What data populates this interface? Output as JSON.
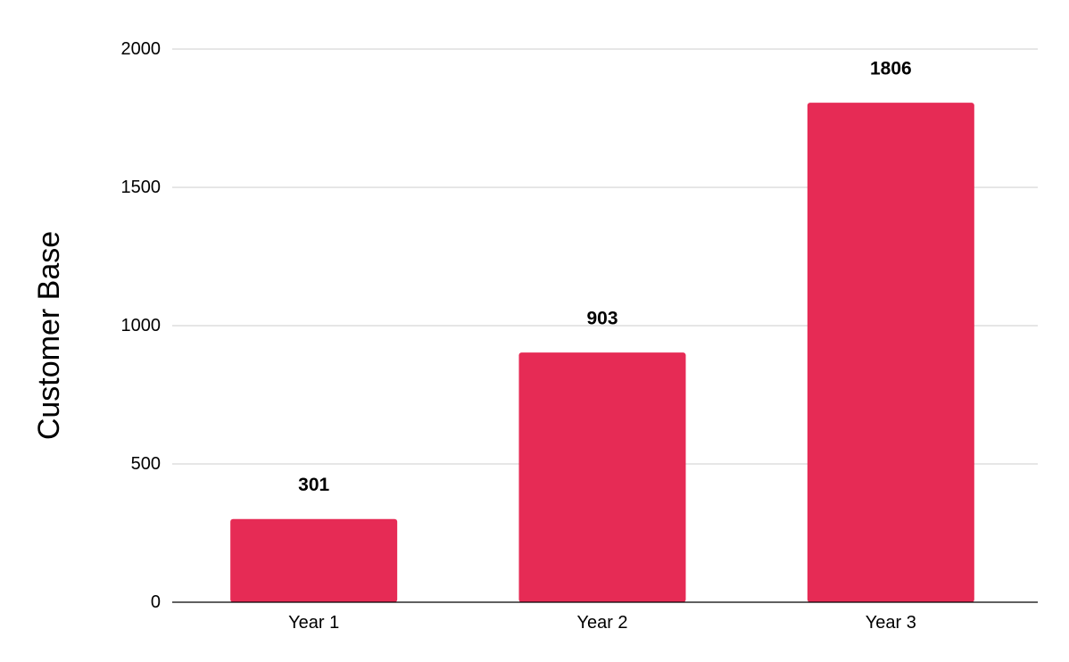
{
  "chart_data": {
    "type": "bar",
    "title": "",
    "xlabel": "",
    "ylabel": "Customer Base",
    "categories": [
      "Year 1",
      "Year 2",
      "Year 3"
    ],
    "values": [
      301,
      903,
      1806
    ],
    "data_labels": [
      "301",
      "903",
      "1806"
    ],
    "ylim": [
      0,
      2000
    ],
    "yticks": [
      0,
      500,
      1000,
      1500,
      2000
    ],
    "ytick_labels": [
      "0",
      "500",
      "1000",
      "1500",
      "2000"
    ],
    "grid": true,
    "legend": "none",
    "bar_color": "#e62b55"
  }
}
